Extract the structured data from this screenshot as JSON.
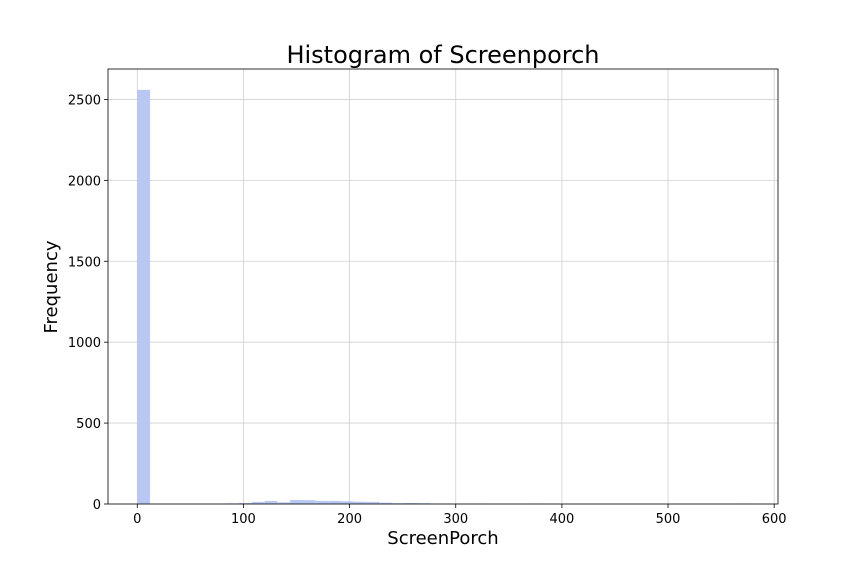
{
  "chart_data": {
    "type": "bar",
    "title": "Histogram of Screenporch",
    "xlabel": "ScreenPorch",
    "ylabel": "Frequency",
    "xlim": [
      -27.6,
      603.6
    ],
    "ylim": [
      0,
      2688
    ],
    "xticks": [
      0,
      100,
      200,
      300,
      400,
      500,
      600
    ],
    "yticks": [
      0,
      500,
      1000,
      1500,
      2000,
      2500
    ],
    "grid": true,
    "bar_color": "#b5c4f2",
    "bins": [
      {
        "x0": 0,
        "x1": 12,
        "count": 2559
      },
      {
        "x0": 84,
        "x1": 96,
        "count": 4
      },
      {
        "x0": 96,
        "x1": 108,
        "count": 6
      },
      {
        "x0": 108,
        "x1": 120,
        "count": 13
      },
      {
        "x0": 120,
        "x1": 132,
        "count": 19
      },
      {
        "x0": 132,
        "x1": 144,
        "count": 10
      },
      {
        "x0": 144,
        "x1": 156,
        "count": 25
      },
      {
        "x0": 156,
        "x1": 168,
        "count": 24
      },
      {
        "x0": 168,
        "x1": 180,
        "count": 19
      },
      {
        "x0": 180,
        "x1": 192,
        "count": 19
      },
      {
        "x0": 192,
        "x1": 204,
        "count": 17
      },
      {
        "x0": 204,
        "x1": 216,
        "count": 14
      },
      {
        "x0": 216,
        "x1": 228,
        "count": 13
      },
      {
        "x0": 228,
        "x1": 240,
        "count": 8
      },
      {
        "x0": 240,
        "x1": 252,
        "count": 5
      },
      {
        "x0": 252,
        "x1": 264,
        "count": 6
      },
      {
        "x0": 264,
        "x1": 276,
        "count": 5
      },
      {
        "x0": 276,
        "x1": 288,
        "count": 3
      },
      {
        "x0": 288,
        "x1": 300,
        "count": 3
      },
      {
        "x0": 300,
        "x1": 312,
        "count": 2
      },
      {
        "x0": 312,
        "x1": 324,
        "count": 1
      },
      {
        "x0": 372,
        "x1": 384,
        "count": 1
      },
      {
        "x0": 564,
        "x1": 576,
        "count": 1
      }
    ]
  }
}
